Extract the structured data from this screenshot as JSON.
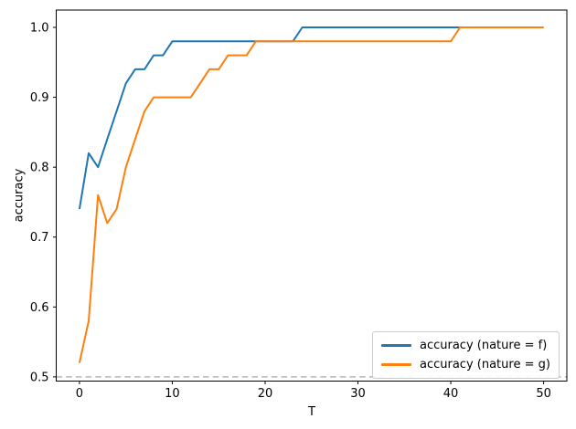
{
  "figure": {
    "background": "#ffffff",
    "text_color": "#000000",
    "spine_color": "#000000"
  },
  "chart_data": {
    "type": "line",
    "title": "",
    "xlabel": "T",
    "ylabel": "accuracy",
    "xlim": [
      -2.5,
      52.5
    ],
    "ylim": [
      0.494,
      1.0248
    ],
    "xticks": [
      0,
      10,
      20,
      30,
      40,
      50
    ],
    "yticks": [
      0.5,
      0.6,
      0.7,
      0.8,
      0.9,
      1.0
    ],
    "grid": false,
    "legend_position": "lower right",
    "baseline": {
      "y": 0.5,
      "style": "dashed",
      "color": "#c0c0c0"
    },
    "x": [
      0,
      1,
      2,
      3,
      4,
      5,
      6,
      7,
      8,
      9,
      10,
      11,
      12,
      13,
      14,
      15,
      16,
      17,
      18,
      19,
      20,
      21,
      22,
      23,
      24,
      25,
      26,
      27,
      28,
      29,
      30,
      31,
      32,
      33,
      34,
      35,
      36,
      37,
      38,
      39,
      40,
      41,
      42,
      43,
      44,
      45,
      46,
      47,
      48,
      49,
      50
    ],
    "series": [
      {
        "name": "accuracy (nature = f)",
        "color": "#1f77b4",
        "values": [
          0.74,
          0.82,
          0.8,
          0.84,
          0.88,
          0.92,
          0.94,
          0.94,
          0.96,
          0.96,
          0.98,
          0.98,
          0.98,
          0.98,
          0.98,
          0.98,
          0.98,
          0.98,
          0.98,
          0.98,
          0.98,
          0.98,
          0.98,
          0.98,
          1.0,
          1.0,
          1.0,
          1.0,
          1.0,
          1.0,
          1.0,
          1.0,
          1.0,
          1.0,
          1.0,
          1.0,
          1.0,
          1.0,
          1.0,
          1.0,
          1.0,
          1.0,
          1.0,
          1.0,
          1.0,
          1.0,
          1.0,
          1.0,
          1.0,
          1.0,
          1.0
        ]
      },
      {
        "name": "accuracy (nature = g)",
        "color": "#ff7f0e",
        "values": [
          0.52,
          0.58,
          0.76,
          0.72,
          0.74,
          0.8,
          0.84,
          0.88,
          0.9,
          0.9,
          0.9,
          0.9,
          0.9,
          0.92,
          0.94,
          0.94,
          0.96,
          0.96,
          0.96,
          0.98,
          0.98,
          0.98,
          0.98,
          0.98,
          0.98,
          0.98,
          0.98,
          0.98,
          0.98,
          0.98,
          0.98,
          0.98,
          0.98,
          0.98,
          0.98,
          0.98,
          0.98,
          0.98,
          0.98,
          0.98,
          0.98,
          1.0,
          1.0,
          1.0,
          1.0,
          1.0,
          1.0,
          1.0,
          1.0,
          1.0,
          1.0
        ]
      }
    ]
  }
}
